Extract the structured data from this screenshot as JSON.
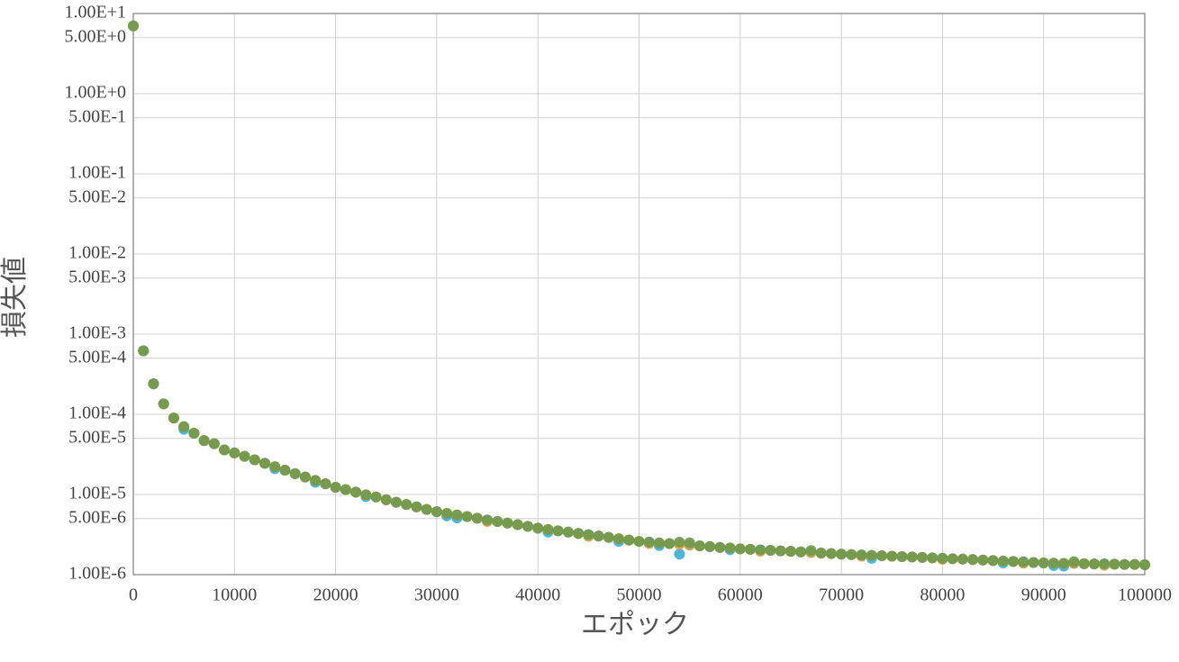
{
  "chart_data": {
    "type": "scatter",
    "x_label": "エポック",
    "y_label": "損失値",
    "log_y": true,
    "grid": true,
    "x": [
      0,
      1000,
      2000,
      3000,
      4000,
      5000,
      6000,
      7000,
      8000,
      9000,
      10000,
      11000,
      12000,
      13000,
      14000,
      15000,
      16000,
      17000,
      18000,
      19000,
      20000,
      21000,
      22000,
      23000,
      24000,
      25000,
      26000,
      27000,
      28000,
      29000,
      30000,
      31000,
      32000,
      33000,
      34000,
      35000,
      36000,
      37000,
      38000,
      39000,
      40000,
      41000,
      42000,
      43000,
      44000,
      45000,
      46000,
      47000,
      48000,
      49000,
      50000,
      51000,
      52000,
      53000,
      54000,
      55000,
      56000,
      57000,
      58000,
      59000,
      60000,
      61000,
      62000,
      63000,
      64000,
      65000,
      66000,
      67000,
      68000,
      69000,
      70000,
      71000,
      72000,
      73000,
      74000,
      75000,
      76000,
      77000,
      78000,
      79000,
      80000,
      81000,
      82000,
      83000,
      84000,
      85000,
      86000,
      87000,
      88000,
      89000,
      90000,
      91000,
      92000,
      93000,
      94000,
      95000,
      96000,
      97000,
      98000,
      99000,
      100000
    ],
    "series": [
      {
        "color": "#3aaed8",
        "values": [
          7,
          0.00062,
          0.00024,
          0.000135,
          9e-05,
          6.5e-05,
          5.8e-05,
          4.7e-05,
          4.3e-05,
          3.6e-05,
          3.3e-05,
          2.99e-05,
          2.71e-05,
          2.45e-05,
          2.1e-05,
          2.01e-05,
          1.82e-05,
          1.65e-05,
          1.42e-05,
          1.36e-05,
          1.23e-05,
          1.15e-05,
          1.07e-05,
          9.4e-06,
          9.3e-06,
          8.6e-06,
          8e-06,
          7.5e-06,
          7e-06,
          6.5e-06,
          6.1e-06,
          5.4e-06,
          5.1e-06,
          5.3e-06,
          5.05e-06,
          4.8e-06,
          4.6e-06,
          4.4e-06,
          4.2e-06,
          4e-06,
          3.8e-06,
          3.4e-06,
          3.52e-06,
          3.39e-06,
          3.27e-06,
          3.15e-06,
          3.03e-06,
          2.92e-06,
          2.6e-06,
          2.7e-06,
          2.6e-06,
          2.55e-06,
          2.3e-06,
          2.44e-06,
          1.8e-06,
          2.34e-06,
          2.29e-06,
          2.24e-06,
          2.19e-06,
          2.05e-06,
          2.1e-06,
          2.07e-06,
          2.04e-06,
          2.01e-06,
          1.98e-06,
          1.95e-06,
          1.92e-06,
          1.89e-06,
          1.86e-06,
          1.83e-06,
          1.8e-06,
          1.78e-06,
          1.76e-06,
          1.6e-06,
          1.72e-06,
          1.7e-06,
          1.68e-06,
          1.66e-06,
          1.64e-06,
          1.62e-06,
          1.6e-06,
          1.58e-06,
          1.56e-06,
          1.54e-06,
          1.52e-06,
          1.5e-06,
          1.4e-06,
          1.46e-06,
          1.44e-06,
          1.42e-06,
          1.4e-06,
          1.3e-06,
          1.28e-06,
          1.38e-06,
          1.37e-06,
          1.36e-06,
          1.36e-06,
          1.35e-06,
          1.34e-06,
          1.34e-06,
          1.33e-06
        ]
      },
      {
        "color": "#d9a03c",
        "values": [
          7,
          0.00062,
          0.00024,
          0.000135,
          9e-05,
          7e-05,
          5.8e-05,
          4.7e-05,
          4.3e-05,
          3.6e-05,
          3.3e-05,
          2.99e-05,
          2.71e-05,
          2.45e-05,
          2.22e-05,
          2.01e-05,
          1.82e-05,
          1.65e-05,
          1.5e-05,
          1.36e-05,
          1.23e-05,
          1.15e-05,
          1.07e-05,
          9.9e-06,
          9.3e-06,
          8.6e-06,
          8e-06,
          7.5e-06,
          7e-06,
          6.5e-06,
          6.1e-06,
          5.8e-06,
          5.55e-06,
          5.3e-06,
          5.05e-06,
          4.6e-06,
          4.6e-06,
          4.4e-06,
          4.2e-06,
          4e-06,
          3.8e-06,
          3.66e-06,
          3.52e-06,
          3.39e-06,
          3.27e-06,
          3e-06,
          3.03e-06,
          2.92e-06,
          2.81e-06,
          2.7e-06,
          2.6e-06,
          2.45e-06,
          2.49e-06,
          2.44e-06,
          2.39e-06,
          2.34e-06,
          2.29e-06,
          2.24e-06,
          2.19e-06,
          2.15e-06,
          2.1e-06,
          2.07e-06,
          1.96e-06,
          2.01e-06,
          1.98e-06,
          1.95e-06,
          1.92e-06,
          1.89e-06,
          1.86e-06,
          1.83e-06,
          1.8e-06,
          1.78e-06,
          1.7e-06,
          1.74e-06,
          1.72e-06,
          1.7e-06,
          1.68e-06,
          1.66e-06,
          1.64e-06,
          1.62e-06,
          1.55e-06,
          1.58e-06,
          1.56e-06,
          1.54e-06,
          1.52e-06,
          1.5e-06,
          1.48e-06,
          1.46e-06,
          1.39e-06,
          1.42e-06,
          1.4e-06,
          1.39e-06,
          1.38e-06,
          1.38e-06,
          1.37e-06,
          1.36e-06,
          1.31e-06,
          1.35e-06,
          1.34e-06,
          1.34e-06,
          1.33e-06
        ]
      },
      {
        "color": "#6e9a4f",
        "values": [
          7,
          0.00062,
          0.00024,
          0.000135,
          9e-05,
          7e-05,
          5.8e-05,
          4.7e-05,
          4.3e-05,
          3.6e-05,
          3.3e-05,
          2.99e-05,
          2.71e-05,
          2.45e-05,
          2.22e-05,
          2.01e-05,
          1.82e-05,
          1.65e-05,
          1.5e-05,
          1.36e-05,
          1.23e-05,
          1.15e-05,
          1.07e-05,
          9.9e-06,
          9.3e-06,
          8.6e-06,
          8e-06,
          7.5e-06,
          7e-06,
          6.5e-06,
          6.1e-06,
          5.8e-06,
          5.55e-06,
          5.3e-06,
          5.05e-06,
          4.8e-06,
          4.6e-06,
          4.4e-06,
          4.2e-06,
          4e-06,
          3.8e-06,
          3.66e-06,
          3.52e-06,
          3.39e-06,
          3.27e-06,
          3.15e-06,
          3.03e-06,
          2.92e-06,
          2.81e-06,
          2.7e-06,
          2.6e-06,
          2.55e-06,
          2.49e-06,
          2.44e-06,
          2.55e-06,
          2.5e-06,
          2.29e-06,
          2.24e-06,
          2.19e-06,
          2.15e-06,
          2.1e-06,
          2.07e-06,
          2.04e-06,
          2.01e-06,
          1.98e-06,
          1.95e-06,
          1.92e-06,
          2e-06,
          1.86e-06,
          1.83e-06,
          1.8e-06,
          1.78e-06,
          1.76e-06,
          1.74e-06,
          1.72e-06,
          1.7e-06,
          1.68e-06,
          1.66e-06,
          1.64e-06,
          1.62e-06,
          1.6e-06,
          1.58e-06,
          1.56e-06,
          1.54e-06,
          1.52e-06,
          1.5e-06,
          1.48e-06,
          1.46e-06,
          1.44e-06,
          1.42e-06,
          1.4e-06,
          1.39e-06,
          1.38e-06,
          1.45e-06,
          1.37e-06,
          1.36e-06,
          1.36e-06,
          1.35e-06,
          1.34e-06,
          1.34e-06,
          1.33e-06
        ]
      }
    ],
    "xlim": [
      0,
      100000
    ],
    "xticks": [
      0,
      10000,
      20000,
      30000,
      40000,
      50000,
      60000,
      70000,
      80000,
      90000,
      100000
    ],
    "ylim": [
      1e-06,
      10
    ],
    "yticks": [
      {
        "value": 10,
        "label": "1.00E+1"
      },
      {
        "value": 5,
        "label": "5.00E+0"
      },
      {
        "value": 1,
        "label": "1.00E+0"
      },
      {
        "value": 0.5,
        "label": "5.00E-1"
      },
      {
        "value": 0.1,
        "label": "1.00E-1"
      },
      {
        "value": 0.05,
        "label": "5.00E-2"
      },
      {
        "value": 0.01,
        "label": "1.00E-2"
      },
      {
        "value": 0.005,
        "label": "5.00E-3"
      },
      {
        "value": 0.001,
        "label": "1.00E-3"
      },
      {
        "value": 0.0005,
        "label": "5.00E-4"
      },
      {
        "value": 0.0001,
        "label": "1.00E-4"
      },
      {
        "value": 5e-05,
        "label": "5.00E-5"
      },
      {
        "value": 1e-05,
        "label": "1.00E-5"
      },
      {
        "value": 5e-06,
        "label": "5.00E-6"
      },
      {
        "value": 1e-06,
        "label": "1.00E-6"
      }
    ]
  }
}
